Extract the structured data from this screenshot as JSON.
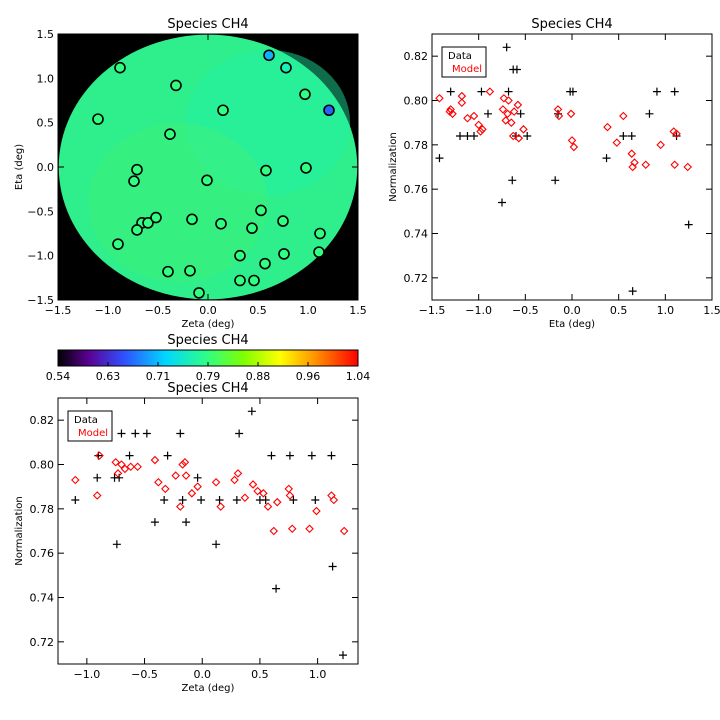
{
  "colors": {
    "data": "#000000",
    "model": "#ff0000",
    "background": "#000000"
  },
  "chart_data": [
    {
      "type": "scatter",
      "title": "Species CH4",
      "xlabel": "Zeta (deg)",
      "ylabel": "Eta (deg)",
      "xlim": [
        -1.5,
        1.5
      ],
      "ylim": [
        -1.5,
        1.5
      ],
      "xticks": [
        "−1.5",
        "−1.0",
        "−0.5",
        "0.0",
        "0.5",
        "1.0",
        "1.5"
      ],
      "yticks": [
        "−1.5",
        "−1.0",
        "−0.5",
        "0.0",
        "0.5",
        "1.0",
        "1.5"
      ],
      "background_fill": "field map, circular, value ≈ 0.79",
      "points": [
        {
          "x": -0.88,
          "y": 1.12,
          "v": 0.79
        },
        {
          "x": -0.32,
          "y": 0.92,
          "v": 0.79
        },
        {
          "x": 0.61,
          "y": 1.26,
          "v": 0.7
        },
        {
          "x": 0.78,
          "y": 1.12,
          "v": 0.76
        },
        {
          "x": 0.97,
          "y": 0.82,
          "v": 0.79
        },
        {
          "x": 1.21,
          "y": 0.64,
          "v": 0.66
        },
        {
          "x": -1.1,
          "y": 0.54,
          "v": 0.79
        },
        {
          "x": 0.15,
          "y": 0.64,
          "v": 0.79
        },
        {
          "x": -0.38,
          "y": 0.37,
          "v": 0.79
        },
        {
          "x": -0.71,
          "y": -0.03,
          "v": 0.79
        },
        {
          "x": -0.74,
          "y": -0.16,
          "v": 0.79
        },
        {
          "x": -0.01,
          "y": -0.15,
          "v": 0.79
        },
        {
          "x": 0.58,
          "y": -0.04,
          "v": 0.79
        },
        {
          "x": 0.98,
          "y": -0.01,
          "v": 0.79
        },
        {
          "x": -0.66,
          "y": -0.63,
          "v": 0.79
        },
        {
          "x": -0.71,
          "y": -0.71,
          "v": 0.79
        },
        {
          "x": -0.6,
          "y": -0.63,
          "v": 0.79
        },
        {
          "x": -0.52,
          "y": -0.57,
          "v": 0.79
        },
        {
          "x": -0.9,
          "y": -0.87,
          "v": 0.79
        },
        {
          "x": -0.16,
          "y": -0.59,
          "v": 0.79
        },
        {
          "x": 0.13,
          "y": -0.64,
          "v": 0.79
        },
        {
          "x": 0.53,
          "y": -0.49,
          "v": 0.79
        },
        {
          "x": 0.44,
          "y": -0.69,
          "v": 0.79
        },
        {
          "x": 0.75,
          "y": -0.61,
          "v": 0.79
        },
        {
          "x": 1.12,
          "y": -0.75,
          "v": 0.79
        },
        {
          "x": -0.4,
          "y": -1.18,
          "v": 0.79
        },
        {
          "x": -0.18,
          "y": -1.17,
          "v": 0.79
        },
        {
          "x": 0.32,
          "y": -1.0,
          "v": 0.79
        },
        {
          "x": 0.57,
          "y": -1.09,
          "v": 0.79
        },
        {
          "x": 0.76,
          "y": -0.98,
          "v": 0.79
        },
        {
          "x": 1.11,
          "y": -0.96,
          "v": 0.79
        },
        {
          "x": 0.32,
          "y": -1.28,
          "v": 0.79
        },
        {
          "x": 0.46,
          "y": -1.28,
          "v": 0.79
        },
        {
          "x": -0.09,
          "y": -1.42,
          "v": 0.79
        }
      ]
    },
    {
      "type": "scatter",
      "title": "Species CH4",
      "xlabel": "Eta (deg)",
      "ylabel": "Normalization",
      "xlim": [
        -1.5,
        1.5
      ],
      "ylim": [
        0.71,
        0.83
      ],
      "xticks": [
        "−1.5",
        "−1.0",
        "−0.5",
        "0.0",
        "0.5",
        "1.0",
        "1.5"
      ],
      "yticks": [
        "0.72",
        "0.74",
        "0.76",
        "0.78",
        "0.80",
        "0.82"
      ],
      "legend": [
        "Data",
        "Model"
      ],
      "legend_position": "top-left",
      "series": [
        {
          "name": "Data",
          "marker": "plus",
          "points": [
            [
              -1.42,
              0.774
            ],
            [
              -1.3,
              0.804
            ],
            [
              -1.2,
              0.784
            ],
            [
              -1.12,
              0.784
            ],
            [
              -1.05,
              0.784
            ],
            [
              -0.97,
              0.804
            ],
            [
              -0.9,
              0.794
            ],
            [
              -0.75,
              0.754
            ],
            [
              -0.7,
              0.824
            ],
            [
              -0.68,
              0.804
            ],
            [
              -0.64,
              0.764
            ],
            [
              -0.63,
              0.814
            ],
            [
              -0.6,
              0.784
            ],
            [
              -0.59,
              0.814
            ],
            [
              -0.55,
              0.794
            ],
            [
              -0.48,
              0.784
            ],
            [
              -0.18,
              0.764
            ],
            [
              -0.15,
              0.794
            ],
            [
              -0.02,
              0.804
            ],
            [
              0.01,
              0.804
            ],
            [
              0.37,
              0.774
            ],
            [
              0.55,
              0.784
            ],
            [
              0.64,
              0.784
            ],
            [
              0.65,
              0.714
            ],
            [
              0.83,
              0.794
            ],
            [
              0.91,
              0.804
            ],
            [
              1.1,
              0.804
            ],
            [
              1.12,
              0.784
            ],
            [
              1.25,
              0.744
            ]
          ]
        },
        {
          "name": "Model",
          "marker": "diamond",
          "points": [
            [
              -1.42,
              0.801
            ],
            [
              -1.31,
              0.795
            ],
            [
              -1.3,
              0.796
            ],
            [
              -1.28,
              0.794
            ],
            [
              -1.18,
              0.802
            ],
            [
              -1.18,
              0.799
            ],
            [
              -1.12,
              0.792
            ],
            [
              -1.05,
              0.793
            ],
            [
              -1.0,
              0.789
            ],
            [
              -0.98,
              0.786
            ],
            [
              -0.96,
              0.787
            ],
            [
              -0.88,
              0.804
            ],
            [
              -0.74,
              0.796
            ],
            [
              -0.73,
              0.801
            ],
            [
              -0.71,
              0.791
            ],
            [
              -0.69,
              0.794
            ],
            [
              -0.68,
              0.8
            ],
            [
              -0.65,
              0.79
            ],
            [
              -0.63,
              0.784
            ],
            [
              -0.62,
              0.795
            ],
            [
              -0.58,
              0.798
            ],
            [
              -0.57,
              0.783
            ],
            [
              -0.52,
              0.787
            ],
            [
              -0.15,
              0.796
            ],
            [
              -0.14,
              0.793
            ],
            [
              -0.01,
              0.794
            ],
            [
              0.0,
              0.782
            ],
            [
              0.02,
              0.779
            ],
            [
              0.38,
              0.788
            ],
            [
              0.48,
              0.781
            ],
            [
              0.55,
              0.793
            ],
            [
              0.64,
              0.776
            ],
            [
              0.65,
              0.77
            ],
            [
              0.67,
              0.772
            ],
            [
              0.79,
              0.771
            ],
            [
              0.95,
              0.78
            ],
            [
              1.09,
              0.786
            ],
            [
              1.1,
              0.771
            ],
            [
              1.12,
              0.785
            ],
            [
              1.24,
              0.77
            ]
          ]
        }
      ]
    },
    {
      "type": "colorbar",
      "title": "Species CH4",
      "ticks": [
        "0.54",
        "0.63",
        "0.71",
        "0.79",
        "0.88",
        "0.96",
        "1.04"
      ],
      "range": [
        0.54,
        1.04
      ],
      "colormap": "rainbow (black → purple → blue → cyan → green → yellow → red)"
    },
    {
      "type": "scatter",
      "title": "Species CH4",
      "xlabel": "Zeta (deg)",
      "ylabel": "Normalization",
      "xlim": [
        -1.25,
        1.35
      ],
      "ylim": [
        0.71,
        0.83
      ],
      "xticks": [
        "−1.0",
        "−0.5",
        "0.0",
        "0.5",
        "1.0"
      ],
      "xtick_values": [
        -1.0,
        -0.5,
        0.0,
        0.5,
        1.0
      ],
      "yticks": [
        "0.72",
        "0.74",
        "0.76",
        "0.78",
        "0.80",
        "0.82"
      ],
      "legend": [
        "Data",
        "Model"
      ],
      "legend_position": "top-left",
      "series": [
        {
          "name": "Data",
          "marker": "plus",
          "points": [
            [
              -1.1,
              0.784
            ],
            [
              -0.91,
              0.794
            ],
            [
              -0.9,
              0.804
            ],
            [
              -0.76,
              0.794
            ],
            [
              -0.74,
              0.764
            ],
            [
              -0.72,
              0.794
            ],
            [
              -0.7,
              0.814
            ],
            [
              -0.63,
              0.804
            ],
            [
              -0.58,
              0.814
            ],
            [
              -0.48,
              0.814
            ],
            [
              -0.41,
              0.774
            ],
            [
              -0.33,
              0.784
            ],
            [
              -0.3,
              0.804
            ],
            [
              -0.19,
              0.814
            ],
            [
              -0.17,
              0.784
            ],
            [
              -0.14,
              0.774
            ],
            [
              -0.04,
              0.794
            ],
            [
              -0.01,
              0.784
            ],
            [
              0.12,
              0.764
            ],
            [
              0.15,
              0.784
            ],
            [
              0.3,
              0.784
            ],
            [
              0.32,
              0.814
            ],
            [
              0.43,
              0.824
            ],
            [
              0.5,
              0.784
            ],
            [
              0.55,
              0.784
            ],
            [
              0.6,
              0.804
            ],
            [
              0.64,
              0.744
            ],
            [
              0.76,
              0.804
            ],
            [
              0.79,
              0.784
            ],
            [
              0.95,
              0.804
            ],
            [
              0.98,
              0.784
            ],
            [
              1.12,
              0.804
            ],
            [
              1.13,
              0.754
            ],
            [
              1.22,
              0.714
            ]
          ]
        },
        {
          "name": "Model",
          "marker": "diamond",
          "points": [
            [
              -1.1,
              0.793
            ],
            [
              -0.91,
              0.786
            ],
            [
              -0.89,
              0.804
            ],
            [
              -0.75,
              0.801
            ],
            [
              -0.73,
              0.796
            ],
            [
              -0.7,
              0.8
            ],
            [
              -0.67,
              0.798
            ],
            [
              -0.62,
              0.799
            ],
            [
              -0.56,
              0.799
            ],
            [
              -0.41,
              0.802
            ],
            [
              -0.38,
              0.792
            ],
            [
              -0.32,
              0.789
            ],
            [
              -0.23,
              0.795
            ],
            [
              -0.19,
              0.781
            ],
            [
              -0.17,
              0.8
            ],
            [
              -0.15,
              0.801
            ],
            [
              -0.14,
              0.795
            ],
            [
              -0.09,
              0.787
            ],
            [
              -0.04,
              0.79
            ],
            [
              0.12,
              0.792
            ],
            [
              0.16,
              0.781
            ],
            [
              0.28,
              0.793
            ],
            [
              0.31,
              0.796
            ],
            [
              0.37,
              0.785
            ],
            [
              0.44,
              0.791
            ],
            [
              0.48,
              0.788
            ],
            [
              0.53,
              0.787
            ],
            [
              0.57,
              0.781
            ],
            [
              0.62,
              0.77
            ],
            [
              0.65,
              0.783
            ],
            [
              0.75,
              0.789
            ],
            [
              0.76,
              0.786
            ],
            [
              0.78,
              0.771
            ],
            [
              0.93,
              0.771
            ],
            [
              0.99,
              0.779
            ],
            [
              1.12,
              0.786
            ],
            [
              1.14,
              0.784
            ],
            [
              1.23,
              0.77
            ]
          ]
        }
      ]
    }
  ]
}
